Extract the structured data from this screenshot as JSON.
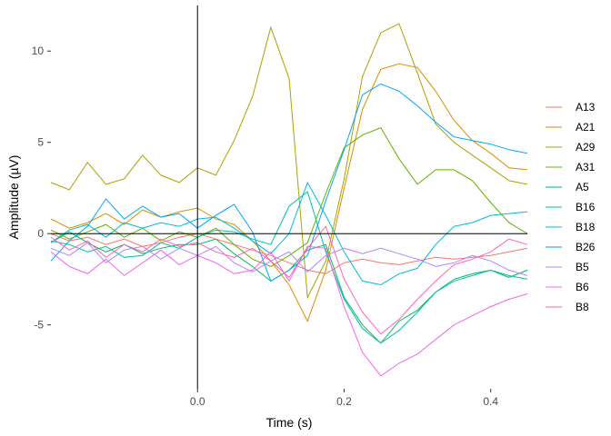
{
  "chart_data": {
    "type": "line",
    "xlabel": "Time (s)",
    "ylabel": "Amplitude (µV)",
    "x_ticks": [
      0.0,
      0.2,
      0.4
    ],
    "x_tick_labels": [
      "0.0",
      "0.2",
      "0.4"
    ],
    "y_ticks": [
      -5,
      0,
      5,
      10
    ],
    "y_tick_labels": [
      "-5",
      "0",
      "5",
      "10"
    ],
    "xlim": [
      -0.2,
      0.45
    ],
    "ylim": [
      -8.5,
      12.5
    ],
    "grid": false,
    "legend_position": "right",
    "reference_lines": {
      "x": 0,
      "y": 0
    },
    "x": [
      -0.2,
      -0.175,
      -0.15,
      -0.125,
      -0.1,
      -0.075,
      -0.05,
      -0.025,
      0.0,
      0.025,
      0.05,
      0.075,
      0.1,
      0.125,
      0.15,
      0.175,
      0.2,
      0.225,
      0.25,
      0.275,
      0.3,
      0.325,
      0.35,
      0.375,
      0.4,
      0.425,
      0.45
    ],
    "series": [
      {
        "name": "A13",
        "color": "#F8766D",
        "values": [
          0.0,
          -0.4,
          -0.2,
          -0.6,
          -0.3,
          -0.7,
          -0.5,
          -0.2,
          0.0,
          -0.3,
          -0.6,
          -0.9,
          -1.2,
          -1.6,
          -2.0,
          -2.2,
          -1.6,
          -1.4,
          -1.6,
          -1.7,
          -1.5,
          -1.3,
          -1.4,
          -1.3,
          -1.2,
          -1.0,
          -0.8
        ]
      },
      {
        "name": "A21",
        "color": "#DB8E00",
        "values": [
          0.8,
          0.3,
          0.6,
          1.1,
          0.5,
          1.3,
          0.9,
          1.2,
          1.4,
          0.8,
          0.5,
          -0.4,
          -1.5,
          -2.8,
          -4.8,
          -2.0,
          2.5,
          6.8,
          9.0,
          9.3,
          9.1,
          7.8,
          6.2,
          5.1,
          4.4,
          3.6,
          3.5
        ]
      },
      {
        "name": "A29",
        "color": "#AEA200",
        "values": [
          2.8,
          2.4,
          3.9,
          2.7,
          3.0,
          4.3,
          3.2,
          2.8,
          3.6,
          3.2,
          5.1,
          7.5,
          11.3,
          8.5,
          -3.5,
          -1.5,
          3.0,
          8.6,
          11.0,
          11.5,
          8.8,
          6.0,
          5.0,
          4.3,
          3.6,
          2.9,
          2.7
        ]
      },
      {
        "name": "A31",
        "color": "#64B200",
        "values": [
          0.2,
          -0.3,
          0.1,
          0.5,
          -0.2,
          0.3,
          -0.4,
          0.1,
          -0.2,
          0.3,
          -0.6,
          -1.4,
          -1.8,
          -1.2,
          -0.5,
          2.2,
          4.7,
          5.4,
          5.8,
          4.1,
          2.7,
          3.5,
          3.5,
          2.9,
          1.7,
          0.6,
          0.0
        ]
      },
      {
        "name": "A5",
        "color": "#00BD5C",
        "values": [
          -0.5,
          0.1,
          -0.5,
          -1.0,
          -0.6,
          -1.1,
          -0.8,
          -0.6,
          -0.6,
          -0.3,
          -1.1,
          -1.8,
          -2.6,
          -2.0,
          -0.9,
          -0.6,
          -3.5,
          -5.0,
          -6.0,
          -4.8,
          -4.2,
          -3.2,
          -2.5,
          -2.2,
          -2.0,
          -2.4,
          -2.0
        ]
      },
      {
        "name": "B16",
        "color": "#00C1A7",
        "values": [
          -0.4,
          -0.6,
          -1.0,
          -0.7,
          -1.3,
          -1.2,
          -0.5,
          -0.8,
          -0.2,
          0.2,
          0.1,
          -0.3,
          -0.6,
          1.5,
          2.3,
          -1.0,
          -3.6,
          -5.2,
          -6.0,
          -5.3,
          -4.3,
          -3.2,
          -2.6,
          -2.3,
          -2.0,
          -2.3,
          -2.5
        ]
      },
      {
        "name": "B18",
        "color": "#00BADE",
        "values": [
          -0.5,
          0.2,
          0.5,
          -0.2,
          0.6,
          0.3,
          0.6,
          0.4,
          0.8,
          0.9,
          0.3,
          -0.4,
          -1.1,
          0.0,
          2.8,
          1.0,
          -1.0,
          -2.6,
          -2.8,
          -2.2,
          -1.9,
          -0.6,
          0.4,
          0.6,
          1.0,
          1.1,
          1.2
        ]
      },
      {
        "name": "B26",
        "color": "#00A6FF",
        "values": [
          -1.5,
          -0.4,
          0.4,
          1.9,
          0.8,
          1.5,
          0.9,
          1.1,
          0.3,
          1.0,
          1.6,
          0.1,
          -2.6,
          -2.0,
          -1.2,
          1.8,
          4.6,
          7.6,
          8.2,
          7.8,
          7.0,
          6.1,
          5.3,
          5.1,
          4.9,
          4.6,
          4.4
        ]
      },
      {
        "name": "B5",
        "color": "#B385FF",
        "values": [
          -0.8,
          -1.2,
          -0.5,
          -1.6,
          -0.9,
          -0.7,
          -1.4,
          -0.8,
          -1.2,
          -0.7,
          -1.6,
          -2.1,
          -1.5,
          -1.0,
          -2.1,
          -1.2,
          -0.8,
          -1.1,
          -0.8,
          -1.1,
          -1.4,
          -1.8,
          -1.6,
          -1.2,
          -1.5,
          -2.0,
          -2.3
        ]
      },
      {
        "name": "B6",
        "color": "#EF67EB",
        "values": [
          -1.0,
          -1.8,
          -2.2,
          -1.4,
          -2.3,
          -1.6,
          -0.9,
          -1.7,
          -1.2,
          -1.6,
          -2.2,
          -2.0,
          -1.0,
          -2.6,
          -0.7,
          -0.8,
          -4.0,
          -6.5,
          -7.8,
          -7.1,
          -6.6,
          -5.8,
          -5.0,
          -4.5,
          -4.0,
          -3.6,
          -3.3
        ]
      },
      {
        "name": "B8",
        "color": "#FF63B6",
        "values": [
          -0.2,
          -0.9,
          -0.4,
          -1.3,
          -0.6,
          -1.0,
          -0.3,
          -0.7,
          -0.5,
          -1.0,
          -1.3,
          -0.8,
          -1.5,
          -2.4,
          -0.8,
          0.4,
          -2.5,
          -4.3,
          -5.5,
          -4.7,
          -3.6,
          -2.6,
          -1.7,
          -1.4,
          -1.0,
          -0.3,
          -0.6
        ]
      }
    ]
  }
}
